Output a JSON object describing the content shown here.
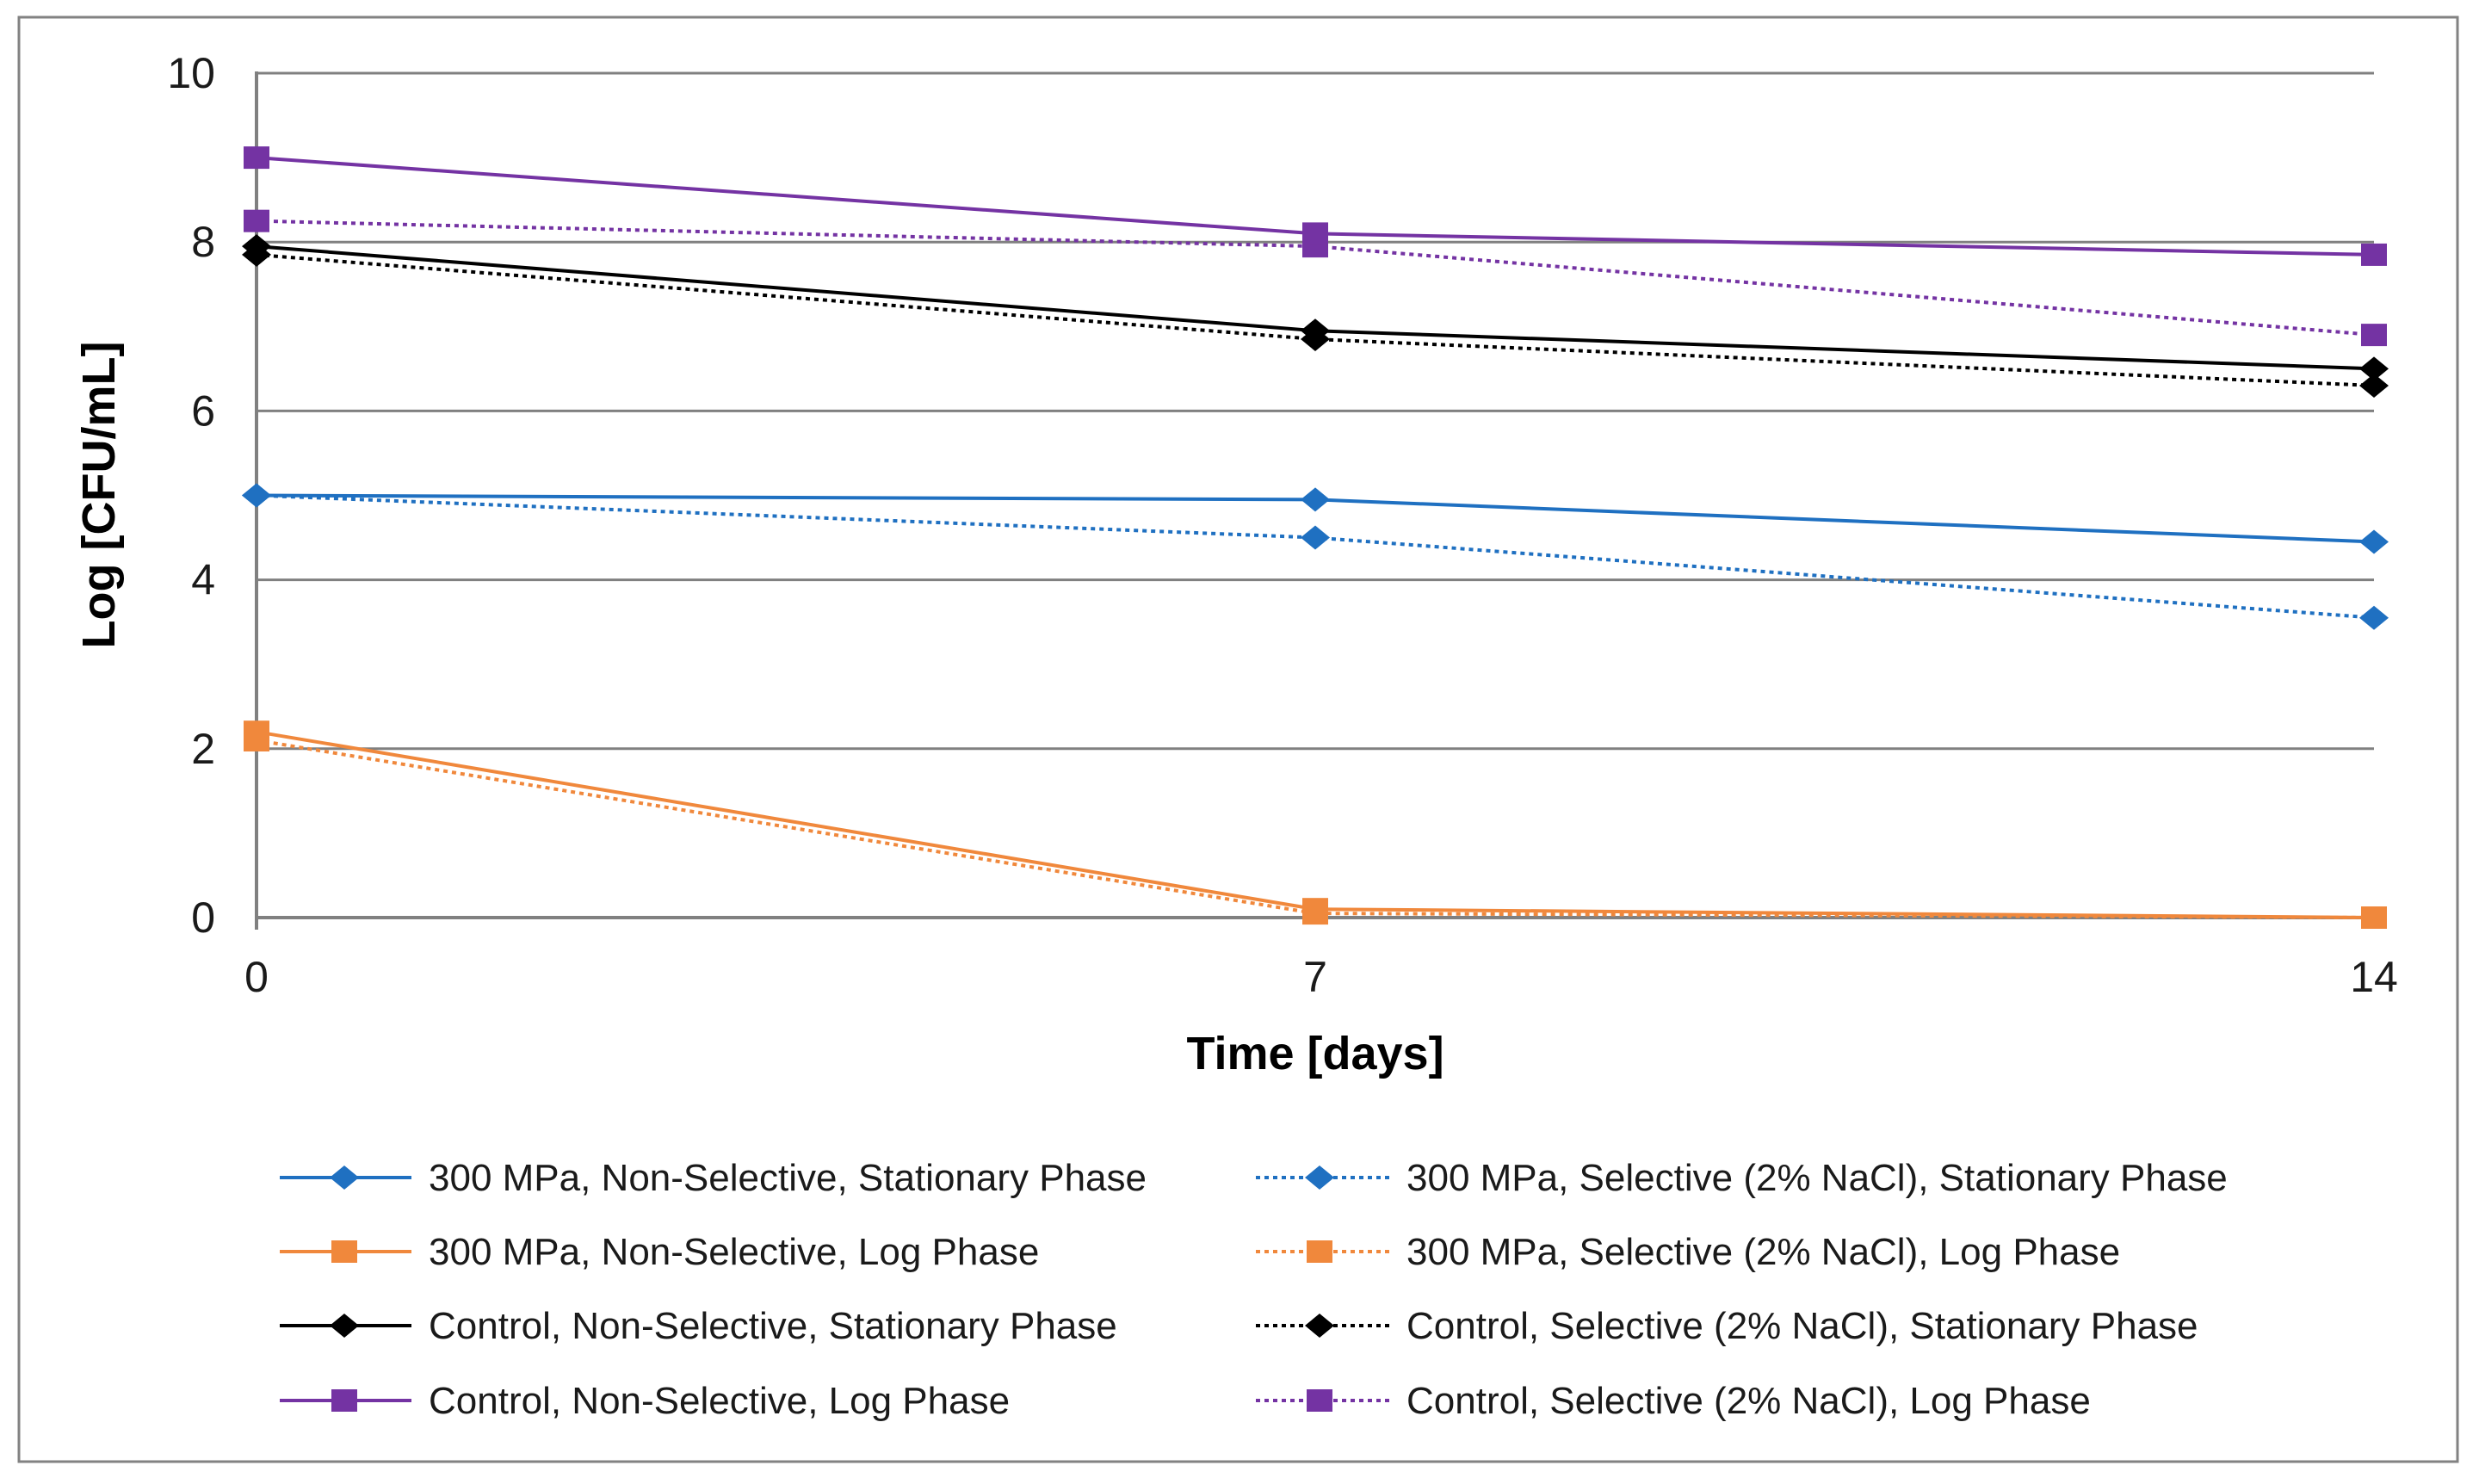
{
  "chart_data": {
    "type": "line",
    "x": [
      0,
      7,
      14
    ],
    "x_tick_labels": [
      "0",
      "7",
      "14"
    ],
    "y_tick_labels": [
      "0",
      "2",
      "4",
      "6",
      "8",
      "10"
    ],
    "y_tick_values": [
      0,
      2,
      4,
      6,
      8,
      10
    ],
    "xlabel": "Time [days]",
    "ylabel": "Log [CFU/mL]",
    "xlim": [
      0,
      14
    ],
    "ylim": [
      0,
      10
    ],
    "grid": "horizontal major gridlines on",
    "legend_position": "bottom, two columns (left = solid/Non-Selective, right = dotted/Selective)",
    "series": [
      {
        "name": "300 MPa, Non-Selective, Stationary Phase",
        "color": "#1F70C1",
        "line_style": "solid",
        "marker": "diamond",
        "values": [
          5.0,
          4.95,
          4.45
        ]
      },
      {
        "name": "300 MPa, Non-Selective, Log Phase",
        "color": "#F0883C",
        "line_style": "solid",
        "marker": "square",
        "values": [
          2.2,
          0.1,
          0.0
        ]
      },
      {
        "name": "Control, Non-Selective, Stationary Phase",
        "color": "#000000",
        "line_style": "solid",
        "marker": "diamond",
        "values": [
          7.95,
          6.95,
          6.5
        ]
      },
      {
        "name": "Control, Non-Selective, Log Phase",
        "color": "#7433A3",
        "line_style": "solid",
        "marker": "square",
        "values": [
          9.0,
          8.1,
          7.85
        ]
      },
      {
        "name": "300 MPa, Selective (2% NaCl), Stationary Phase",
        "color": "#1F70C1",
        "line_style": "dotted",
        "marker": "diamond",
        "values": [
          5.0,
          4.5,
          3.55
        ]
      },
      {
        "name": "300 MPa, Selective (2% NaCl), Log Phase",
        "color": "#F0883C",
        "line_style": "dotted",
        "marker": "square",
        "values": [
          2.1,
          0.05,
          0.0
        ]
      },
      {
        "name": "Control, Selective (2% NaCl), Stationary Phase",
        "color": "#000000",
        "line_style": "dotted",
        "marker": "diamond",
        "values": [
          7.85,
          6.85,
          6.3
        ]
      },
      {
        "name": "Control, Selective (2% NaCl), Log Phase",
        "color": "#7433A3",
        "line_style": "dotted",
        "marker": "square",
        "values": [
          8.25,
          7.95,
          6.9
        ]
      }
    ],
    "colors": {
      "gridline": "#808080",
      "axis_line": "#808080",
      "chart_border": "#828282",
      "tick_text": "#1a1a1a",
      "title_text": "#000000"
    }
  }
}
